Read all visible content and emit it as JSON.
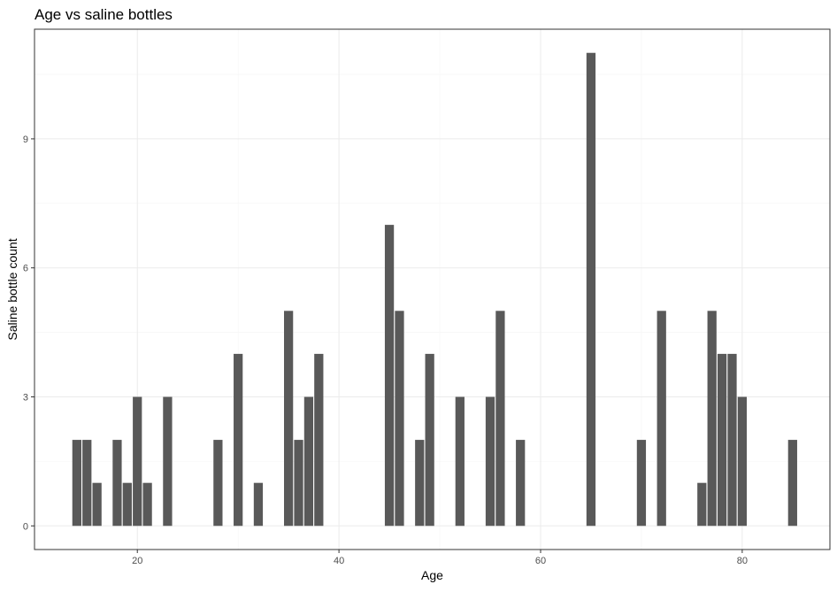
{
  "colors": {
    "bar": "#595959",
    "panel_border": "#333333",
    "grid_major": "#ebebeb",
    "grid_minor": "#f5f5f5",
    "tick_text": "#4d4d4d",
    "background": "#ffffff"
  },
  "chart_data": {
    "type": "bar",
    "title": "Age vs saline bottles",
    "xlabel": "Age",
    "ylabel": "Saline bottle count",
    "xlim": [
      9.8,
      88.7
    ],
    "ylim": [
      -0.55,
      11.55
    ],
    "x_ticks": [
      20,
      40,
      60,
      80
    ],
    "y_ticks": [
      0,
      3,
      6,
      9
    ],
    "x_tick_labels": [
      "20",
      "40",
      "60",
      "80"
    ],
    "y_tick_labels": [
      "0",
      "3",
      "6",
      "9"
    ],
    "grid": true,
    "legend": "none",
    "bar_width": 0.9,
    "x": [
      14,
      15,
      16,
      18,
      19,
      20,
      21,
      23,
      28,
      30,
      32,
      35,
      36,
      37,
      38,
      45,
      46,
      48,
      49,
      52,
      55,
      56,
      58,
      65,
      70,
      72,
      76,
      77,
      78,
      79,
      80,
      85
    ],
    "values": [
      2,
      2,
      1,
      2,
      1,
      3,
      1,
      3,
      2,
      4,
      1,
      5,
      2,
      3,
      4,
      7,
      5,
      2,
      4,
      3,
      3,
      5,
      2,
      11,
      2,
      5,
      1,
      5,
      4,
      4,
      3,
      2
    ]
  }
}
